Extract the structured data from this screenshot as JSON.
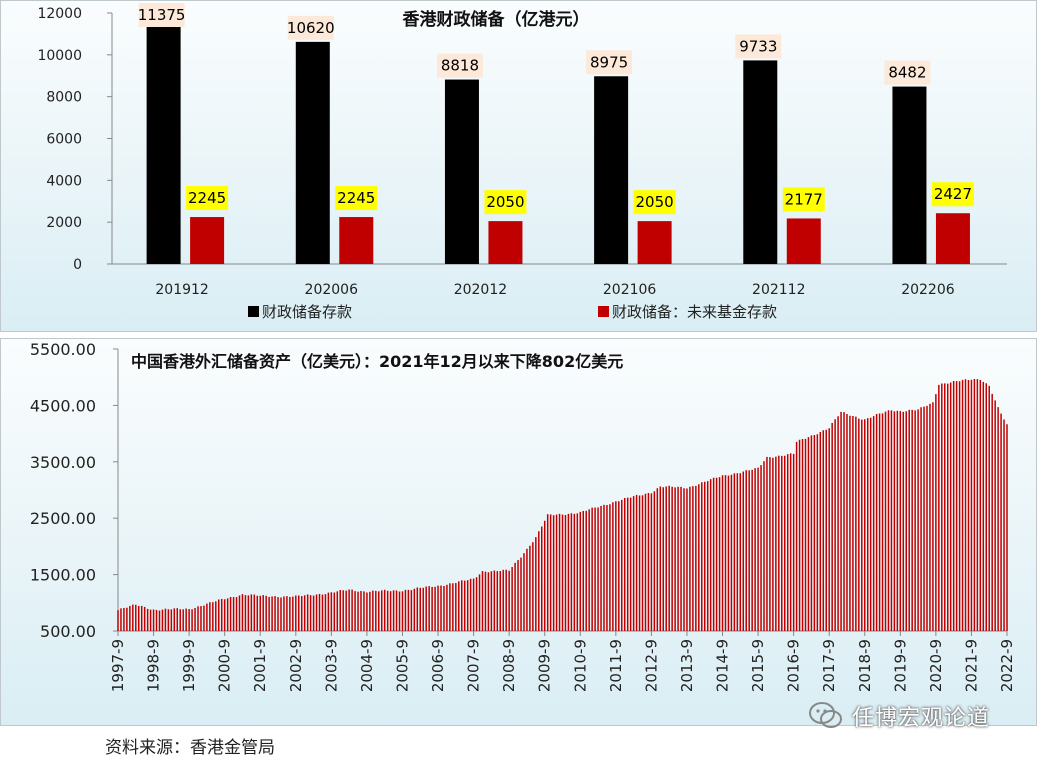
{
  "chart_data": [
    {
      "type": "bar",
      "title": "香港财政储备（亿港元）",
      "categories": [
        "201912",
        "202006",
        "202012",
        "202106",
        "202112",
        "202206"
      ],
      "series": [
        {
          "name": "财政储备存款",
          "color": "#000000",
          "label_bg": "#fde9d9",
          "values": [
            11375,
            10620,
            8818,
            8975,
            9733,
            8482
          ]
        },
        {
          "name": "财政储备：未来基金存款",
          "color": "#c00000",
          "label_bg": "#ffff00",
          "values": [
            2245,
            2245,
            2050,
            2050,
            2177,
            2427
          ]
        }
      ],
      "ylim": [
        0,
        12000
      ],
      "yticks": [
        0,
        2000,
        4000,
        6000,
        8000,
        10000,
        12000
      ],
      "legend_position": "bottom"
    },
    {
      "type": "bar",
      "title": "中国香港外汇储备资产（亿美元）：2021年12月以来下降802亿美元",
      "series_color": "#c00000",
      "ylim": [
        500,
        5500
      ],
      "yticks": [
        "500.00",
        "1500.00",
        "2500.00",
        "3500.00",
        "4500.00",
        "5500.00"
      ],
      "x_ticks": [
        "1997-9",
        "1998-9",
        "1999-9",
        "2000-9",
        "2001-9",
        "2002-9",
        "2003-9",
        "2004-9",
        "2005-9",
        "2006-9",
        "2007-9",
        "2008-9",
        "2009-9",
        "2010-9",
        "2011-9",
        "2012-9",
        "2013-9",
        "2014-9",
        "2015-9",
        "2016-9",
        "2017-9",
        "2018-9",
        "2019-9",
        "2020-9",
        "2021-9",
        "2022-9"
      ],
      "x_start": "1997-9",
      "x_end": "2022-9",
      "anchors": [
        [
          "1997-9",
          880
        ],
        [
          "1998-3",
          960
        ],
        [
          "1998-9",
          880
        ],
        [
          "1999-9",
          890
        ],
        [
          "2000-9",
          1070
        ],
        [
          "2001-3",
          1150
        ],
        [
          "2001-9",
          1120
        ],
        [
          "2002-9",
          1110
        ],
        [
          "2003-9",
          1180
        ],
        [
          "2004-3",
          1230
        ],
        [
          "2004-9",
          1200
        ],
        [
          "2005-9",
          1220
        ],
        [
          "2006-9",
          1300
        ],
        [
          "2007-9",
          1420
        ],
        [
          "2007-12",
          1560
        ],
        [
          "2008-9",
          1570
        ],
        [
          "2009-1",
          1820
        ],
        [
          "2009-6",
          2160
        ],
        [
          "2009-10",
          2550
        ],
        [
          "2010-9",
          2600
        ],
        [
          "2011-9",
          2800
        ],
        [
          "2012-9",
          2960
        ],
        [
          "2012-12",
          3060
        ],
        [
          "2013-9",
          3040
        ],
        [
          "2014-9",
          3250
        ],
        [
          "2015-9",
          3380
        ],
        [
          "2015-12",
          3580
        ],
        [
          "2016-9",
          3640
        ],
        [
          "2016-10",
          3850
        ],
        [
          "2017-9",
          4100
        ],
        [
          "2018-1",
          4380
        ],
        [
          "2018-9",
          4250
        ],
        [
          "2019-6",
          4420
        ],
        [
          "2019-9",
          4400
        ],
        [
          "2020-3",
          4420
        ],
        [
          "2020-8",
          4550
        ],
        [
          "2020-10",
          4880
        ],
        [
          "2021-9",
          4960
        ],
        [
          "2021-12",
          4970
        ],
        [
          "2022-3",
          4850
        ],
        [
          "2022-6",
          4450
        ],
        [
          "2022-9",
          4150
        ]
      ]
    }
  ],
  "source_note": "资料来源：香港金管局",
  "watermark_text": "任博宏观论道"
}
